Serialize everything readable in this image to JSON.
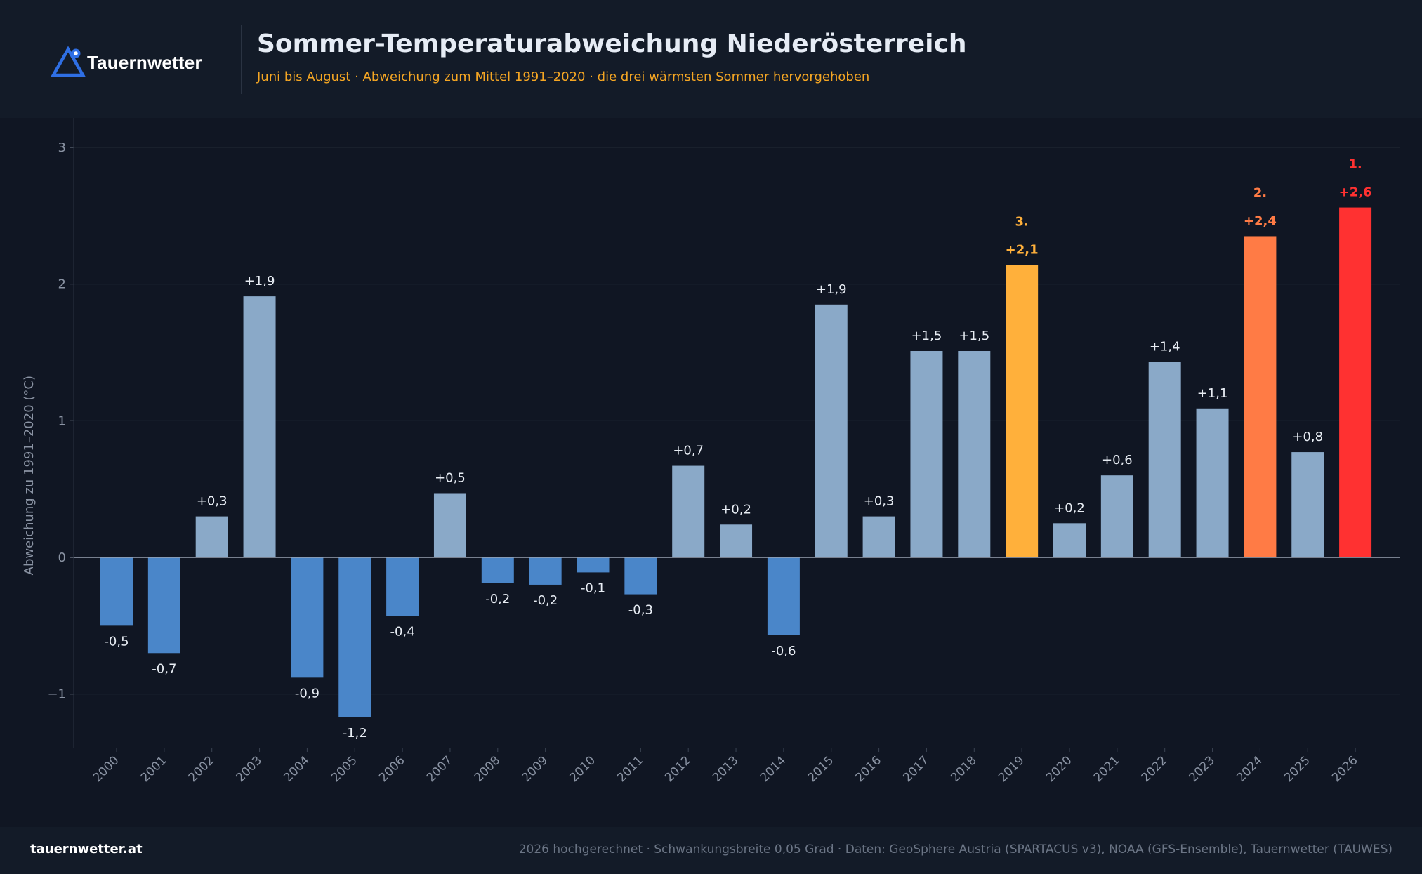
{
  "header": {
    "brand": "Tauernwetter",
    "title": "Sommer-Temperaturabweichung Niederösterreich",
    "subtitle": "Juni bis August · Abweichung zum Mittel 1991–2020 · die drei wärmsten Sommer hervorgehoben"
  },
  "footer": {
    "site": "tauernwetter.at",
    "note": "2026 hochgerechnet · Schwankungsbreite 0,05 Grad  ·  Daten: GeoSphere Austria (SPARTACUS v3), NOAA (GFS-Ensemble), Tauernwetter (TAUWES)"
  },
  "colors": {
    "positive": "#8aa9c8",
    "negative": "#4a86c9",
    "rank1": "#ff3131",
    "rank2": "#ff7b45",
    "rank3": "#ffb03b",
    "grid": "#222a36",
    "axis_text": "#8a93a3",
    "label_text": "#e8edf4"
  },
  "chart_data": {
    "type": "bar",
    "ylabel": "Abweichung zu 1991–2020 (°C)",
    "ylim": [
      -1.4,
      3.2
    ],
    "yticks": [
      -1,
      0,
      1,
      2,
      3
    ],
    "ytick_labels": [
      "−1",
      "0",
      "1",
      "2",
      "3"
    ],
    "grid": true,
    "categories": [
      "2000",
      "2001",
      "2002",
      "2003",
      "2004",
      "2005",
      "2006",
      "2007",
      "2008",
      "2009",
      "2010",
      "2011",
      "2012",
      "2013",
      "2014",
      "2015",
      "2016",
      "2017",
      "2018",
      "2019",
      "2020",
      "2021",
      "2022",
      "2023",
      "2024",
      "2025",
      "2026"
    ],
    "values": [
      -0.5,
      -0.7,
      0.3,
      1.91,
      -0.88,
      -1.17,
      -0.43,
      0.47,
      -0.19,
      -0.2,
      -0.11,
      -0.27,
      0.67,
      0.24,
      -0.57,
      1.85,
      0.3,
      1.51,
      1.51,
      2.14,
      0.25,
      0.6,
      1.43,
      1.09,
      2.35,
      0.77,
      2.56
    ],
    "value_labels": [
      "-0,5",
      "-0,7",
      "+0,3",
      "+1,9",
      "-0,9",
      "-1,2",
      "-0,4",
      "+0,5",
      "-0,2",
      "-0,2",
      "-0,1",
      "-0,3",
      "+0,7",
      "+0,2",
      "-0,6",
      "+1,9",
      "+0,3",
      "+1,5",
      "+1,5",
      "+2,1",
      "+0,2",
      "+0,6",
      "+1,4",
      "+1,1",
      "+2,4",
      "+0,8",
      "+2,6"
    ],
    "highlights": [
      {
        "year": "2026",
        "rank": "1."
      },
      {
        "year": "2024",
        "rank": "2."
      },
      {
        "year": "2019",
        "rank": "3."
      }
    ]
  }
}
